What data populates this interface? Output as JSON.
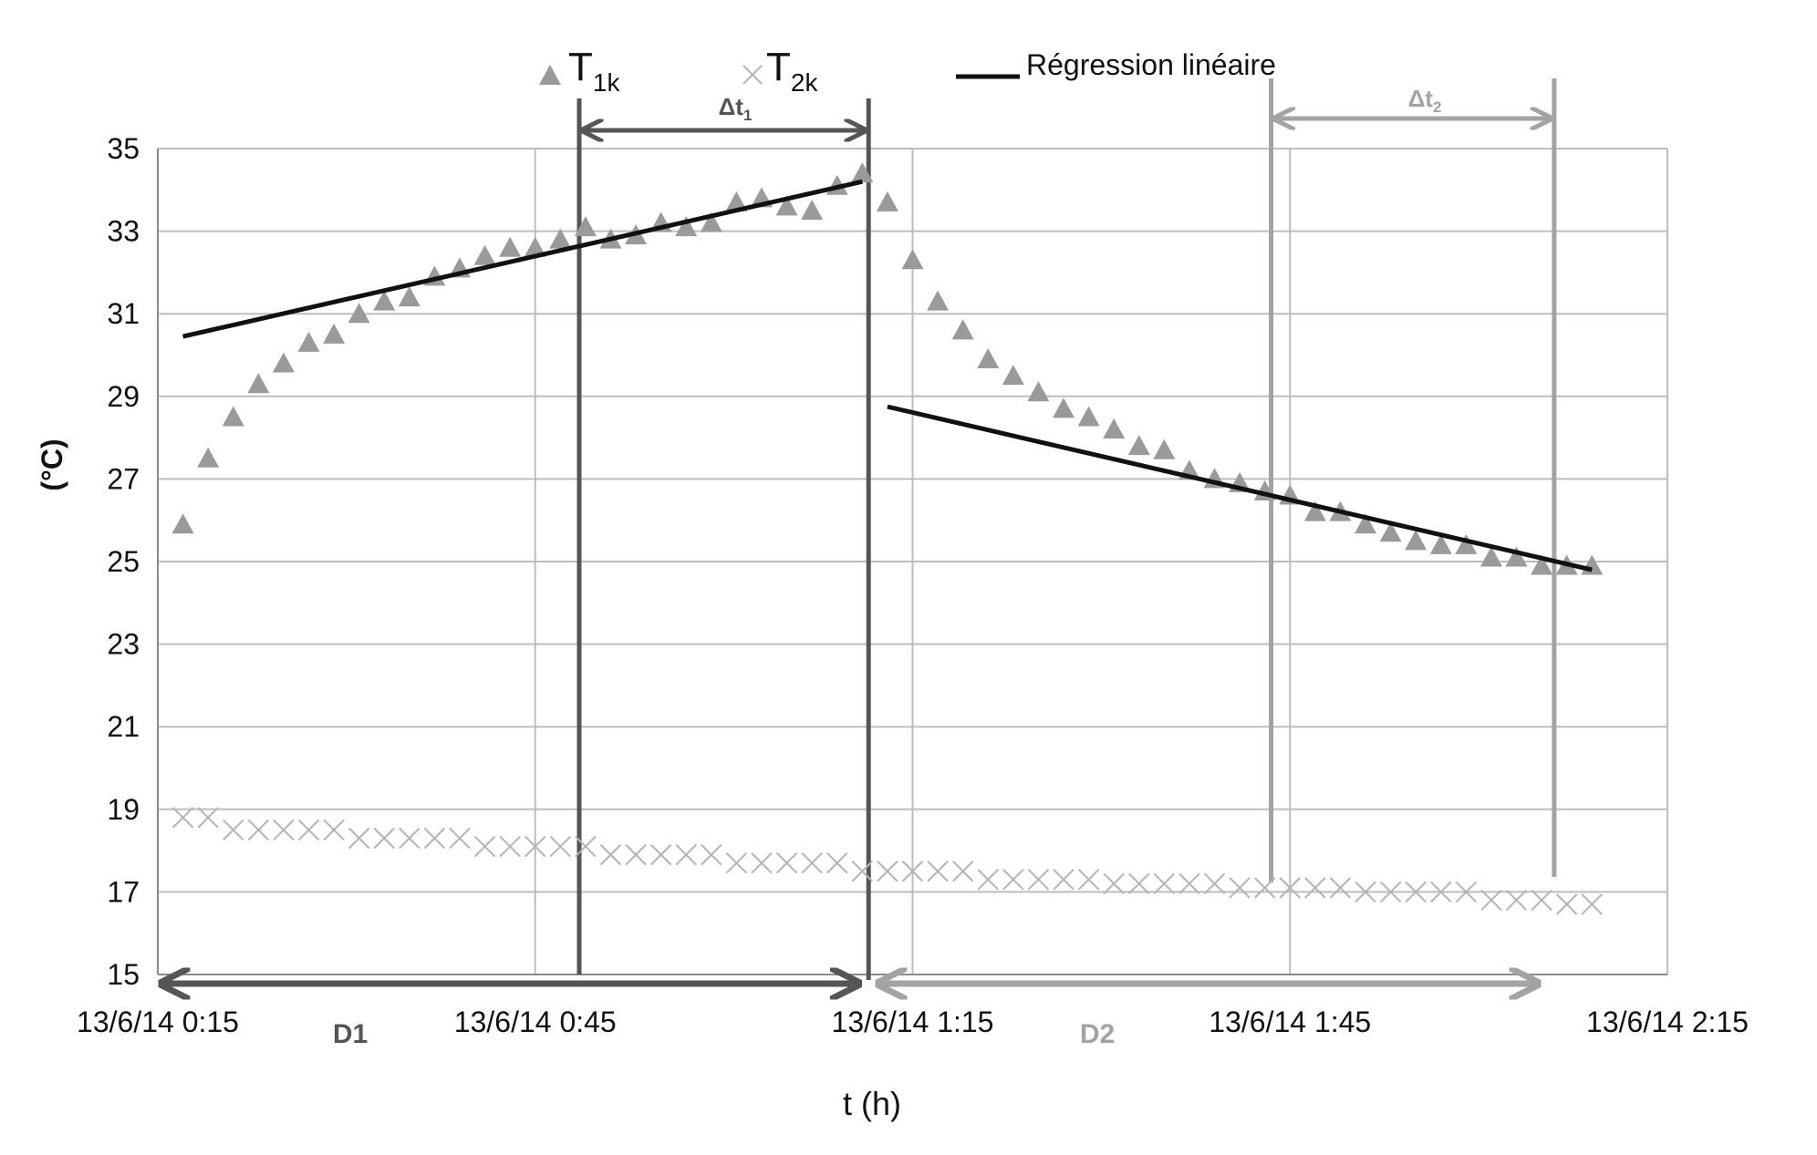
{
  "colors": {
    "t1k": "#9a9a9a",
    "t2k": "#b4b4b4",
    "regression": "#111111",
    "grid": "#bdbdbd",
    "d1": "#555555",
    "d2": "#a3a3a3",
    "window1": "#555555",
    "window2": "#a3a3a3"
  },
  "legend": {
    "t1k_main": "T",
    "t1k_sub": "1k",
    "t2k_main": "T",
    "t2k_sub": "2k",
    "regression": "Régression linéaire"
  },
  "annotations": {
    "dt1_main": "Δt",
    "dt1_sub": "1",
    "dt2_main": "Δt",
    "dt2_sub": "2",
    "d1": "D1",
    "d2": "D2"
  },
  "chart_data": {
    "type": "scatter",
    "title": "",
    "xlabel": "t (h)",
    "ylabel": "(°C)",
    "x_units": "minutes since 13/6/14 0:15",
    "xlim": [
      0,
      120
    ],
    "ylim": [
      15,
      35
    ],
    "grid": true,
    "x_ticks": [
      0,
      30,
      60,
      90,
      120
    ],
    "x_tick_labels": [
      "13/6/14 0:15",
      "13/6/14 0:45",
      "13/6/14 1:15",
      "13/6/14 1:45",
      "13/6/14 2:15"
    ],
    "y_ticks": [
      15,
      17,
      19,
      21,
      23,
      25,
      27,
      29,
      31,
      33,
      35
    ],
    "y_tick_labels": [
      "15",
      "17",
      "19",
      "21",
      "23",
      "25",
      "27",
      "29",
      "31",
      "33",
      "35"
    ],
    "series": [
      {
        "name": "T1k",
        "marker": "triangle",
        "x": [
          2,
          4,
          6,
          8,
          10,
          12,
          14,
          16,
          18,
          20,
          22,
          24,
          26,
          28,
          30,
          32,
          34,
          36,
          38,
          40,
          42,
          44,
          46,
          48,
          50,
          52,
          54,
          56,
          58,
          60,
          62,
          64,
          66,
          68,
          70,
          72,
          74,
          76,
          78,
          80,
          82,
          84,
          86,
          88,
          90,
          92,
          94,
          96,
          98,
          100,
          102,
          104,
          106,
          108,
          110,
          112,
          114
        ],
        "y": [
          25.9,
          27.5,
          28.5,
          29.3,
          29.8,
          30.3,
          30.5,
          31.0,
          31.3,
          31.4,
          31.9,
          32.1,
          32.4,
          32.6,
          32.6,
          32.8,
          33.1,
          32.8,
          32.9,
          33.2,
          33.1,
          33.2,
          33.7,
          33.8,
          33.6,
          33.5,
          34.1,
          34.4,
          33.7,
          32.3,
          31.3,
          30.6,
          29.9,
          29.5,
          29.1,
          28.7,
          28.5,
          28.2,
          27.8,
          27.7,
          27.2,
          27.0,
          26.9,
          26.7,
          26.6,
          26.2,
          26.2,
          25.9,
          25.7,
          25.5,
          25.4,
          25.4,
          25.1,
          25.1,
          24.9,
          24.9,
          24.9
        ]
      },
      {
        "name": "T2k",
        "marker": "x",
        "x": [
          2,
          4,
          6,
          8,
          10,
          12,
          14,
          16,
          18,
          20,
          22,
          24,
          26,
          28,
          30,
          32,
          34,
          36,
          38,
          40,
          42,
          44,
          46,
          48,
          50,
          52,
          54,
          56,
          58,
          60,
          62,
          64,
          66,
          68,
          70,
          72,
          74,
          76,
          78,
          80,
          82,
          84,
          86,
          88,
          90,
          92,
          94,
          96,
          98,
          100,
          102,
          104,
          106,
          108,
          110,
          112,
          114
        ],
        "y": [
          18.8,
          18.8,
          18.5,
          18.5,
          18.5,
          18.5,
          18.5,
          18.3,
          18.3,
          18.3,
          18.3,
          18.3,
          18.1,
          18.1,
          18.1,
          18.1,
          18.1,
          17.9,
          17.9,
          17.9,
          17.9,
          17.9,
          17.7,
          17.7,
          17.7,
          17.7,
          17.7,
          17.5,
          17.5,
          17.5,
          17.5,
          17.5,
          17.3,
          17.3,
          17.3,
          17.3,
          17.3,
          17.2,
          17.2,
          17.2,
          17.2,
          17.2,
          17.1,
          17.1,
          17.1,
          17.1,
          17.1,
          17.0,
          17.0,
          17.0,
          17.0,
          17.0,
          16.8,
          16.8,
          16.8,
          16.7,
          16.7
        ]
      }
    ],
    "regression_lines": [
      {
        "x": [
          2,
          56
        ],
        "y": [
          30.45,
          34.2
        ]
      },
      {
        "x": [
          58,
          114
        ],
        "y": [
          28.75,
          24.8
        ]
      }
    ],
    "vertical_markers": [
      {
        "name": "dt1-start",
        "x": 33.5
      },
      {
        "name": "dt1-end",
        "x": 56.5
      },
      {
        "name": "dt2-start",
        "x": 88.5
      },
      {
        "name": "dt2-end",
        "x": 111
      }
    ],
    "intervals": [
      {
        "name": "dt1",
        "x": [
          33.5,
          56.5
        ]
      },
      {
        "name": "dt2",
        "x": [
          88.5,
          111
        ]
      },
      {
        "name": "d1",
        "x": [
          0,
          56
        ]
      },
      {
        "name": "d2",
        "x": [
          57,
          110
        ]
      }
    ]
  }
}
